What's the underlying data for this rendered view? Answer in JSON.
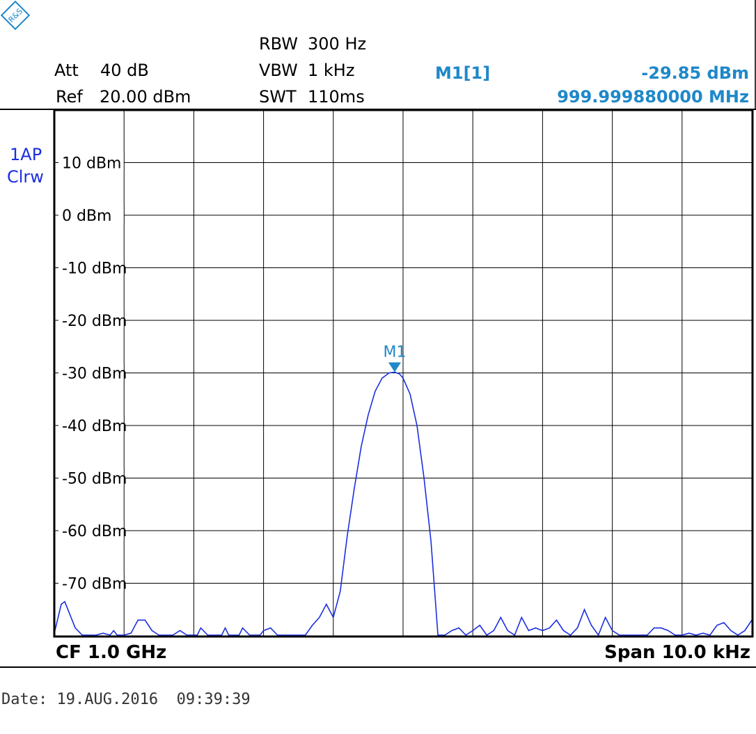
{
  "header": {
    "att_label": "Att",
    "att_value": "40 dB",
    "ref_label": "Ref",
    "ref_value": "20.00 dBm",
    "rbw_label": "RBW",
    "rbw_value": "300 Hz",
    "vbw_label": "VBW",
    "vbw_value": "1 kHz",
    "swt_label": "SWT",
    "swt_value": "110ms",
    "marker_id": "M1[1]",
    "marker_level": "-29.85 dBm",
    "marker_freq": "999.999880000 MHz"
  },
  "trace_info": {
    "line1": "1AP",
    "line2": "Clrw"
  },
  "footer": {
    "cf": "CF 1.0 GHz",
    "span": "Span 10.0 kHz"
  },
  "date": "Date: 19.AUG.2016  09:39:39",
  "colors": {
    "trace": "#1a2ee0",
    "marker": "#1f88c9",
    "grid": "#000000"
  },
  "icons": {
    "logo": "rohde-schwarz-logo-icon"
  },
  "chart_data": {
    "type": "line",
    "xlabel": "",
    "ylabel": "",
    "ylim": [
      -80,
      20
    ],
    "xlim": [
      -5,
      5
    ],
    "y_tick_labels": [
      "10 dBm",
      "0 dBm",
      "-10 dBm",
      "-20 dBm",
      "-30 dBm",
      "-40 dBm",
      "-50 dBm",
      "-60 dBm",
      "-70 dBm"
    ],
    "y_tick_values": [
      10,
      0,
      -10,
      -20,
      -30,
      -40,
      -50,
      -60,
      -70
    ],
    "grid": true,
    "marker": {
      "label": "M1",
      "x": -0.12,
      "y": -29.85
    },
    "series": [
      {
        "x": [
          -5.0,
          -4.9,
          -4.85,
          -4.7,
          -4.6,
          -4.5,
          -4.4,
          -4.3,
          -4.2,
          -4.15,
          -4.1,
          -4.05,
          -4.0,
          -3.9,
          -3.8,
          -3.7,
          -3.6,
          -3.5,
          -3.4,
          -3.3,
          -3.2,
          -3.1,
          -3.0,
          -2.95,
          -2.9,
          -2.8,
          -2.6,
          -2.55,
          -2.5,
          -2.4,
          -2.35,
          -2.3,
          -2.2,
          -2.1,
          -2.05,
          -2.0,
          -1.9,
          -1.8,
          -1.7,
          -1.6,
          -1.5,
          -1.4,
          -1.3,
          -1.2,
          -1.1,
          -1.0,
          -0.9,
          -0.8,
          -0.7,
          -0.6,
          -0.5,
          -0.4,
          -0.3,
          -0.2,
          -0.12,
          -0.05,
          0.0,
          0.1,
          0.2,
          0.3,
          0.4,
          0.5,
          0.6,
          0.7,
          0.8,
          0.9,
          1.0,
          1.1,
          1.2,
          1.3,
          1.4,
          1.5,
          1.6,
          1.7,
          1.8,
          1.9,
          2.0,
          2.1,
          2.2,
          2.3,
          2.4,
          2.5,
          2.6,
          2.7,
          2.8,
          2.9,
          3.0,
          3.1,
          3.2,
          3.3,
          3.4,
          3.5,
          3.6,
          3.7,
          3.8,
          3.9,
          4.0,
          4.1,
          4.2,
          4.3,
          4.4,
          4.5,
          4.6,
          4.7,
          4.8,
          4.9,
          5.0
        ],
        "y": [
          -79.5,
          -74.0,
          -73.5,
          -78.5,
          -80,
          -80,
          -80,
          -79.5,
          -80,
          -79,
          -80,
          -80,
          -80,
          -79.5,
          -77.0,
          -77.0,
          -79,
          -80,
          -80,
          -80,
          -79,
          -80,
          -80,
          -80,
          -78.5,
          -80,
          -80,
          -78.5,
          -80,
          -80,
          -80,
          -78.5,
          -80,
          -80,
          -80,
          -79,
          -78.5,
          -80,
          -80,
          -80,
          -80,
          -80,
          -78,
          -76.5,
          -74.0,
          -76.5,
          -71.5,
          -61.0,
          -52.0,
          -44.0,
          -38.0,
          -33.5,
          -31.0,
          -30.0,
          -29.85,
          -30.2,
          -31.0,
          -34.0,
          -40.0,
          -50.0,
          -62.0,
          -80,
          -80,
          -79,
          -78.5,
          -80,
          -79,
          -78,
          -80,
          -79,
          -76.5,
          -79,
          -80,
          -76.5,
          -79,
          -78.5,
          -79,
          -78.5,
          -77,
          -79,
          -80,
          -78.5,
          -75.0,
          -78,
          -80,
          -76.5,
          -79,
          -80,
          -80,
          -80,
          -80,
          -80,
          -78.5,
          -78.5,
          -79,
          -80,
          -80,
          -79.5,
          -80,
          -79.5,
          -80,
          -78,
          -77.5,
          -79,
          -80,
          -79,
          -77.0
        ]
      }
    ]
  }
}
